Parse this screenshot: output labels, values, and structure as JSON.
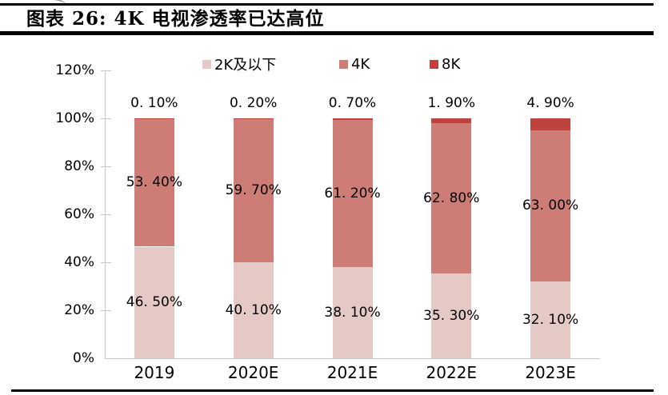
{
  "figure": {
    "title": "图表 26: 4K 电视渗透率已达高位"
  },
  "chart_data": {
    "type": "bar",
    "stacked": true,
    "title": "图表 26: 4K 电视渗透率已达高位",
    "categories": [
      "2019",
      "2020E",
      "2021E",
      "2022E",
      "2023E"
    ],
    "series": [
      {
        "name": "2K及以下",
        "color": "#e5c9c5",
        "values": [
          46.5,
          40.1,
          38.1,
          35.3,
          32.1
        ],
        "labels": [
          "46. 50%",
          "40. 10%",
          "38. 10%",
          "35. 30%",
          "32. 10%"
        ]
      },
      {
        "name": "4K",
        "color": "#cd7c76",
        "values": [
          53.4,
          59.7,
          61.2,
          62.8,
          63.0
        ],
        "labels": [
          "53. 40%",
          "59. 70%",
          "61. 20%",
          "62. 80%",
          "63. 00%"
        ]
      },
      {
        "name": "8K",
        "color": "#c0423c",
        "values": [
          0.1,
          0.2,
          0.7,
          1.9,
          4.9
        ],
        "labels": [
          "0. 10%",
          "0. 20%",
          "0. 70%",
          "1. 90%",
          "4. 90%"
        ]
      }
    ],
    "xlabel": "",
    "ylabel": "",
    "ylim": [
      0,
      120
    ],
    "ytick_step": 20,
    "yticks": [
      "0%",
      "20%",
      "40%",
      "60%",
      "80%",
      "100%",
      "120%"
    ],
    "legend_position": "top",
    "grid": false,
    "axis_color": "#c9c9c9",
    "text_color": "#000000"
  }
}
